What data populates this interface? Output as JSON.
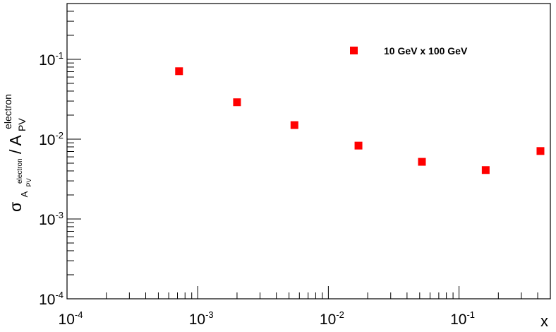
{
  "chart_data": {
    "type": "scatter",
    "x_scale": "log",
    "y_scale": "log",
    "xlim": [
      0.0001,
      0.5
    ],
    "ylim": [
      0.0001,
      0.5
    ],
    "xlabel": "x",
    "ylabel": {
      "sigma": "σ",
      "sub_base": "A",
      "sub_sub": "PV",
      "sub_sup": "electron",
      "sep": " / ",
      "base": "A",
      "base_sub": "PV",
      "base_sup": "electron"
    },
    "x_ticks": [
      {
        "base": "10",
        "exp": "-4"
      },
      {
        "base": "10",
        "exp": "-3"
      },
      {
        "base": "10",
        "exp": "-2"
      },
      {
        "base": "10",
        "exp": "-1"
      }
    ],
    "y_ticks": [
      {
        "base": "10",
        "exp": "-4"
      },
      {
        "base": "10",
        "exp": "-3"
      },
      {
        "base": "10",
        "exp": "-2"
      },
      {
        "base": "10",
        "exp": "-1"
      }
    ],
    "grid": false,
    "legend_position": "top-right",
    "series": [
      {
        "name": "10 GeV x 100 GeV",
        "color": "#ff0000",
        "marker": "square",
        "x": [
          0.00072,
          0.002,
          0.0055,
          0.017,
          0.052,
          0.16,
          0.42
        ],
        "y": [
          0.071,
          0.029,
          0.015,
          0.0083,
          0.0052,
          0.0041,
          0.0071
        ]
      }
    ]
  }
}
